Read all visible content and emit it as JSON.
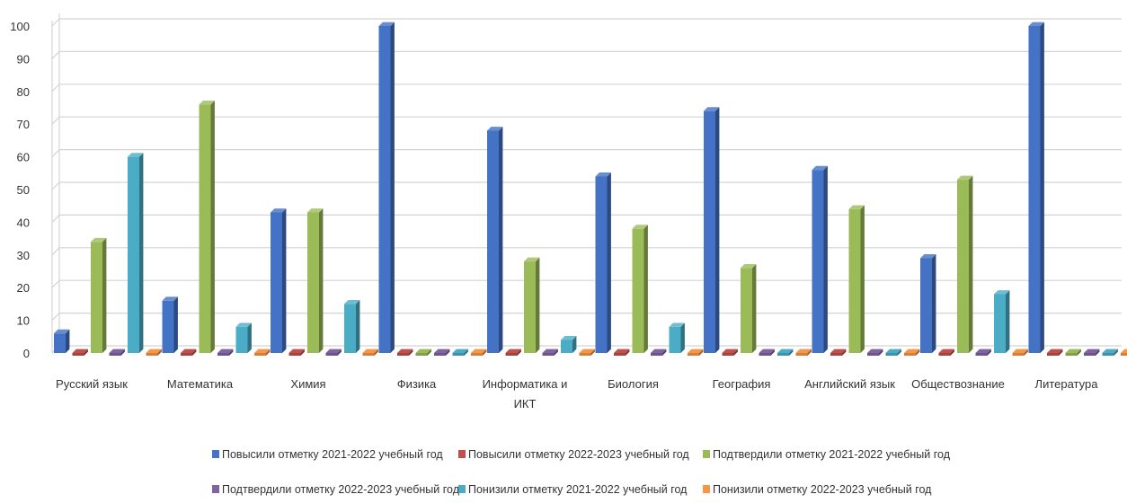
{
  "chart_data": {
    "type": "bar",
    "title": "",
    "xlabel": "",
    "ylabel": "",
    "ylim": [
      0,
      100
    ],
    "yticks": [
      0,
      10,
      20,
      30,
      40,
      50,
      60,
      70,
      80,
      90,
      100
    ],
    "grid": "horizontal",
    "legend_position": "bottom",
    "categories": [
      [
        "Русский язык"
      ],
      [
        "Математика"
      ],
      [
        "Химия"
      ],
      [
        "Физика"
      ],
      [
        "Информатика и",
        "ИКТ"
      ],
      [
        "Биология"
      ],
      [
        "География"
      ],
      [
        "Английский язык"
      ],
      [
        "Обществознание"
      ],
      [
        "Литература"
      ]
    ],
    "series": [
      {
        "name": "Повысили отметку 2021-2022 учебный год",
        "color": "#4472C4",
        "values": [
          6,
          16,
          43,
          100,
          68,
          54,
          74,
          56,
          29,
          100
        ]
      },
      {
        "name": "Повысили отметку 2022-2023 учебный год",
        "color": "#C0504D",
        "values": [
          0,
          0,
          0,
          0,
          0,
          0,
          0,
          0,
          0,
          0
        ]
      },
      {
        "name": "Подтвердили отметку 2021-2022 учебный год",
        "color": "#9BBB59",
        "values": [
          34,
          76,
          43,
          0,
          28,
          38,
          26,
          44,
          53,
          0
        ]
      },
      {
        "name": "Подтвердили отметку 2022-2023 учебный год",
        "color": "#8064A2",
        "values": [
          0,
          0,
          0,
          0,
          0,
          0,
          0,
          0,
          0,
          0
        ]
      },
      {
        "name": "Понизили отметку 2021-2022 учебный год",
        "color": "#4BACC6",
        "values": [
          60,
          8,
          15,
          0,
          4,
          8,
          0,
          0,
          18,
          0
        ]
      },
      {
        "name": "Понизили отметку 2022-2023 учебный год",
        "color": "#F79646",
        "values": [
          0,
          0,
          0,
          0,
          0,
          0,
          0,
          0,
          0,
          0
        ]
      }
    ]
  }
}
